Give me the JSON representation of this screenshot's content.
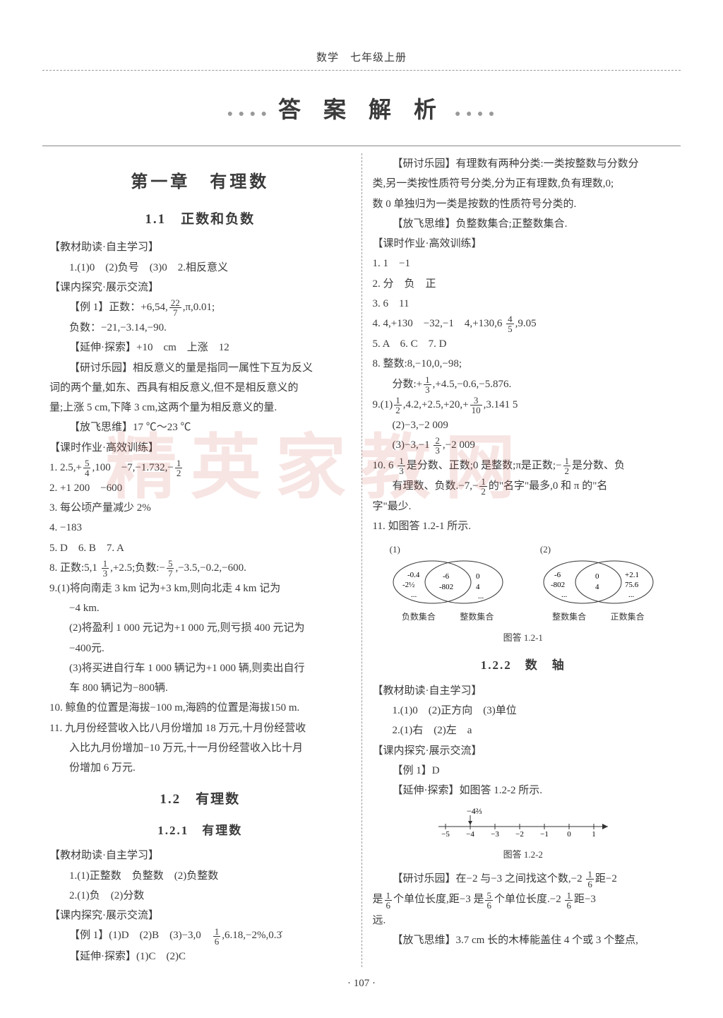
{
  "header": "数学　七年级上册",
  "banner": {
    "title": "答 案 解 析",
    "deco": "● ● ● ●"
  },
  "pageNumber": "· 107 ·",
  "watermark": "精英家教网",
  "left": {
    "chapter": "第一章　有理数",
    "sec11": "1.1　正数和负数",
    "b1": "【教材助读·自主学习】",
    "b1_1": "1.(1)0　(2)负号　(3)0　2.相反意义",
    "b2": "【课内探究·展示交流】",
    "ex1_label": "【例 1】正数：+6,54,",
    "ex1_frac_n": "22",
    "ex1_frac_d": "7",
    "ex1_tail": ",π,0.01;",
    "ex1_neg": "负数：−21,−3.14,−90.",
    "ext1": "【延伸·探索】+10　cm　上涨　12",
    "yanjiu1_a": "【研讨乐园】相反意义的量是指同一属性下互为反义",
    "yanjiu1_b": "词的两个量,如东、西具有相反意义,但不是相反意义的",
    "yanjiu1_c": "量;上涨 5 cm,下降 3 cm,这两个量为相反意义的量.",
    "fangfei1": "【放飞思维】17 ℃～23 ℃",
    "b3": "【课时作业·高效训练】",
    "l1_a": "1. 2.5,+",
    "l1_f1n": "5",
    "l1_f1d": "4",
    "l1_b": ",100　−7,−1.732,−",
    "l1_f2n": "1",
    "l1_f2d": "2",
    "l2": "2. +1 200　−600",
    "l3": "3. 每公顷产量减少 2%",
    "l4": "4. −183",
    "l5": "5. D　6. B　7. A",
    "l8_a": "8. 正数:5,1 ",
    "l8_f1n": "1",
    "l8_f1d": "3",
    "l8_b": ",+2.5;负数:−",
    "l8_f2n": "5",
    "l8_f2d": "7",
    "l8_c": ",−3.5,−0.2,−600.",
    "l9_1a": "9.(1)将向南走 3 km 记为+3 km,则向北走 4 km 记为",
    "l9_1b": "−4 km.",
    "l9_2a": "(2)将盈利 1 000 元记为+1 000 元,则亏损 400 元记为",
    "l9_2b": "−400元.",
    "l9_3a": "(3)将买进自行车 1 000 辆记为+1 000 辆,则卖出自行",
    "l9_3b": "车 800 辆记为−800辆.",
    "l10": "10. 鲸鱼的位置是海拔−100 m,海鸥的位置是海拔150 m.",
    "l11a": "11. 九月份经营收入比八月份增加 18 万元,十月份经营收",
    "l11b": "入比九月份增加−10 万元,十一月份经营收入比十月",
    "l11c": "份增加 6 万元.",
    "sec12": "1.2　有理数",
    "sub121": "1.2.1　有理数",
    "c1": "【教材助读·自主学习】",
    "c1_1": "1.(1)正整数　负整数　(2)负整数",
    "c1_2": "2.(1)负　(2)分数",
    "c2": "【课内探究·展示交流】",
    "c2_ex_a": "【例 1】(1)D　(2)B　(3)−3,0　",
    "c2_ex_fn": "1",
    "c2_ex_fd": "6",
    "c2_ex_b": ",6.18,−2%,0.3̇",
    "c2_ext": "【延伸·探索】(1)C　(2)C"
  },
  "right": {
    "y1a": "【研讨乐园】有理数有两种分类:一类按整数与分数分",
    "y1b": "类,另一类按性质符号分类,分为正有理数,负有理数,0;",
    "y1c": "数 0 单独归为一类是按数的性质符号分类的.",
    "ff1": "【放飞思维】负整数集合;正整数集合.",
    "b1": "【课时作业·高效训练】",
    "r1": "1. 1　−1",
    "r2": "2. 分　负　正",
    "r3": "3. 6　11",
    "r4_a": "4. 4,+130　−32,−1　4,+130,6 ",
    "r4_fn": "4",
    "r4_fd": "5",
    "r4_b": ",9.05",
    "r5": "5. A　6. C　7. D",
    "r8a": "8. 整数:8,−10,0,−98;",
    "r8b_a": "分数:+",
    "r8b_f1n": "1",
    "r8b_f1d": "3",
    "r8b_b": ",+4.5,−0.6,−5.876.",
    "r9_1a": "9.(1)",
    "r9_1f1n": "1",
    "r9_1f1d": "2",
    "r9_1b": ",4.2,+2.5,+20,+",
    "r9_1f2n": "3",
    "r9_1f2d": "10",
    "r9_1c": ",3.141 5",
    "r9_2": "(2)−3,−2 009",
    "r9_3a": "(3)−3,−1 ",
    "r9_3fn": "2",
    "r9_3fd": "3",
    "r9_3b": ",−2 009",
    "r10a": "10. 6 ",
    "r10f1n": "1",
    "r10f1d": "3",
    "r10b": "是分数、正数;0 是整数;π是正数;−",
    "r10f2n": "1",
    "r10f2d": "2",
    "r10c": "是分数、负",
    "r10d_a": "有理数、负数.−7,−",
    "r10d_fn": "1",
    "r10d_fd": "2",
    "r10d_b": "的\"名字\"最多,0 和 π 的\"名",
    "r10e": "字\"最少.",
    "r11": "11. 如图答 1.2-1 所示.",
    "venn": {
      "label1": "(1)",
      "label2": "(2)",
      "set1_left": [
        "-0.4",
        "-2½",
        "..."
      ],
      "set1_mid": [
        "-6",
        "-802"
      ],
      "set1_right": [
        "0",
        "4",
        "..."
      ],
      "set1_lbl_l": "负数集合",
      "set1_lbl_r": "整数集合",
      "set2_left": [
        "-6",
        "-802",
        "..."
      ],
      "set2_mid": [
        "0",
        "4"
      ],
      "set2_right": [
        "+2.1",
        "75.6",
        "..."
      ],
      "set2_lbl_l": "整数集合",
      "set2_lbl_r": "正数集合",
      "caption": "图答 1.2-1"
    },
    "sub122": "1.2.2　数　轴",
    "d1": "【教材助读·自主学习】",
    "d1_1": "1.(1)0　(2)正方向　(3)单位",
    "d1_2": "2.(1)右　(2)左　a",
    "d2": "【课内探究·展示交流】",
    "d2_ex": "【例 1】D",
    "d2_ext": "【延伸·探索】如图答 1.2-2 所示.",
    "numberline": {
      "top_label": "−4⅔",
      "ticks": [
        "−5",
        "−4",
        "−3",
        "−2",
        "−1",
        "0",
        "1"
      ],
      "caption": "图答 1.2-2"
    },
    "yy_a": "【研讨乐园】在−2 与−3 之间找这个数,−2 ",
    "yy_f1n": "1",
    "yy_f1d": "6",
    "yy_b": "距−2",
    "yy2_a": "是",
    "yy2_f1n": "1",
    "yy2_f1d": "6",
    "yy2_b": "个单位长度,距−3 是",
    "yy2_f2n": "5",
    "yy2_f2d": "6",
    "yy2_c": "个单位长度.−2 ",
    "yy2_f3n": "1",
    "yy2_f3d": "6",
    "yy2_d": "距−3",
    "yy3": "远.",
    "ff2": "【放飞思维】3.7 cm 长的木棒能盖住 4 个或 3 个整点,"
  }
}
